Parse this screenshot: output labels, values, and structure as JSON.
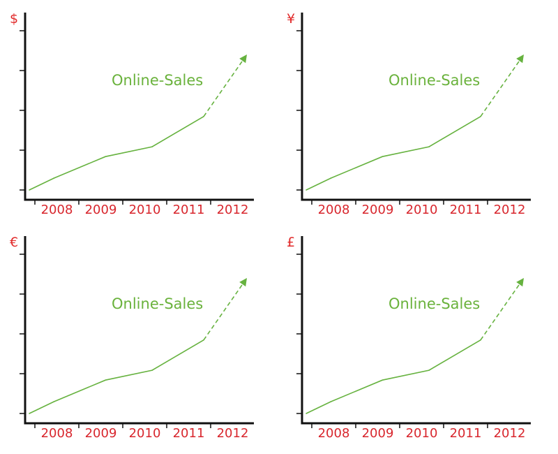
{
  "colors": {
    "axis": "#111111",
    "unit": "#e12a2a",
    "tick_label": "#d8262d",
    "series": "#66b23f"
  },
  "chart_data": [
    {
      "type": "line",
      "unit_symbol": "$",
      "categories": [
        "2008",
        "2009",
        "2010",
        "2011",
        "2012"
      ],
      "series": [
        {
          "name": "Online-Sales",
          "values": [
            0.3,
            1.0,
            1.3,
            2.0,
            3.4
          ],
          "projected_from_index": 3
        }
      ],
      "x": [
        2007.35,
        2007.85,
        2008.9,
        2009.85,
        2010.9,
        2011.78
      ],
      "y_values": [
        0.0,
        0.3,
        0.85,
        1.1,
        1.87,
        3.45
      ],
      "projected_from_point": 4,
      "ylim": [
        0,
        4
      ],
      "y_ticks": 5,
      "grid": false,
      "legend": "inline-upper-right"
    },
    {
      "type": "line",
      "unit_symbol": "¥",
      "categories": [
        "2008",
        "2009",
        "2010",
        "2011",
        "2012"
      ],
      "series": [
        {
          "name": "Online-Sales",
          "values": [
            0.3,
            1.0,
            1.3,
            2.0,
            3.4
          ],
          "projected_from_index": 3
        }
      ],
      "x": [
        2007.35,
        2007.85,
        2008.9,
        2009.85,
        2010.9,
        2011.78
      ],
      "y_values": [
        0.0,
        0.3,
        0.85,
        1.1,
        1.87,
        3.45
      ],
      "projected_from_point": 4,
      "ylim": [
        0,
        4
      ],
      "y_ticks": 5,
      "grid": false,
      "legend": "inline-upper-right"
    },
    {
      "type": "line",
      "unit_symbol": "€",
      "categories": [
        "2008",
        "2009",
        "2010",
        "2011",
        "2012"
      ],
      "series": [
        {
          "name": "Online-Sales",
          "values": [
            0.3,
            1.0,
            1.3,
            2.0,
            3.4
          ],
          "projected_from_index": 3
        }
      ],
      "x": [
        2007.35,
        2007.85,
        2008.9,
        2009.85,
        2010.9,
        2011.78
      ],
      "y_values": [
        0.0,
        0.3,
        0.85,
        1.1,
        1.87,
        3.45
      ],
      "projected_from_point": 4,
      "ylim": [
        0,
        4
      ],
      "y_ticks": 5,
      "grid": false,
      "legend": "inline-upper-right"
    },
    {
      "type": "line",
      "unit_symbol": "£",
      "categories": [
        "2008",
        "2009",
        "2010",
        "2011",
        "2012"
      ],
      "series": [
        {
          "name": "Online-Sales",
          "values": [
            0.3,
            1.0,
            1.3,
            2.0,
            3.4
          ],
          "projected_from_index": 3
        }
      ],
      "x": [
        2007.35,
        2007.85,
        2008.9,
        2009.85,
        2010.9,
        2011.78
      ],
      "y_values": [
        0.0,
        0.3,
        0.85,
        1.1,
        1.87,
        3.45
      ],
      "projected_from_point": 4,
      "ylim": [
        0,
        4
      ],
      "y_ticks": 5,
      "grid": false,
      "legend": "inline-upper-right"
    }
  ]
}
